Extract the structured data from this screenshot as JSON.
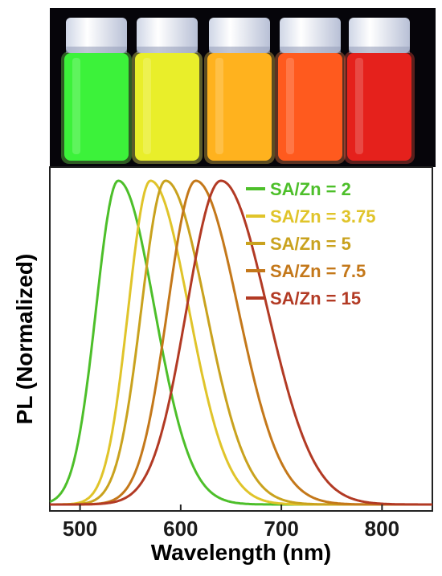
{
  "chart_data": {
    "type": "line",
    "xlabel": "Wavelength (nm)",
    "ylabel": "PL (Normalized)",
    "xlim": [
      470,
      850
    ],
    "ylim": [
      0,
      1.05
    ],
    "xticks": [
      500,
      600,
      700,
      800
    ],
    "grid": false,
    "legend_position": "top-right",
    "series": [
      {
        "name": "SA/Zn = 2",
        "color": "#4dbf2a",
        "peak": 538,
        "sigma_left": 22,
        "sigma_right": 36
      },
      {
        "name": "SA/Zn = 3.75",
        "color": "#e0c42a",
        "peak": 570,
        "sigma_left": 22,
        "sigma_right": 38
      },
      {
        "name": "SA/Zn = 5",
        "color": "#c9a21e",
        "peak": 585,
        "sigma_left": 24,
        "sigma_right": 40
      },
      {
        "name": "SA/Zn = 7.5",
        "color": "#c4781a",
        "peak": 615,
        "sigma_left": 28,
        "sigma_right": 42
      },
      {
        "name": "SA/Zn = 15",
        "color": "#b23a24",
        "peak": 640,
        "sigma_left": 34,
        "sigma_right": 46
      }
    ]
  },
  "photo": {
    "vials": [
      {
        "name": "vial-sa-zn-2",
        "liquid": "#3cf23a",
        "glow": "#7dff55"
      },
      {
        "name": "vial-sa-zn-3.75",
        "liquid": "#e9ee2a",
        "glow": "#ffff66"
      },
      {
        "name": "vial-sa-zn-5",
        "liquid": "#ffb21e",
        "glow": "#ffd050"
      },
      {
        "name": "vial-sa-zn-7.5",
        "liquid": "#ff5a1e",
        "glow": "#ff8a50"
      },
      {
        "name": "vial-sa-zn-15",
        "liquid": "#e5211c",
        "glow": "#ff5040"
      }
    ]
  }
}
